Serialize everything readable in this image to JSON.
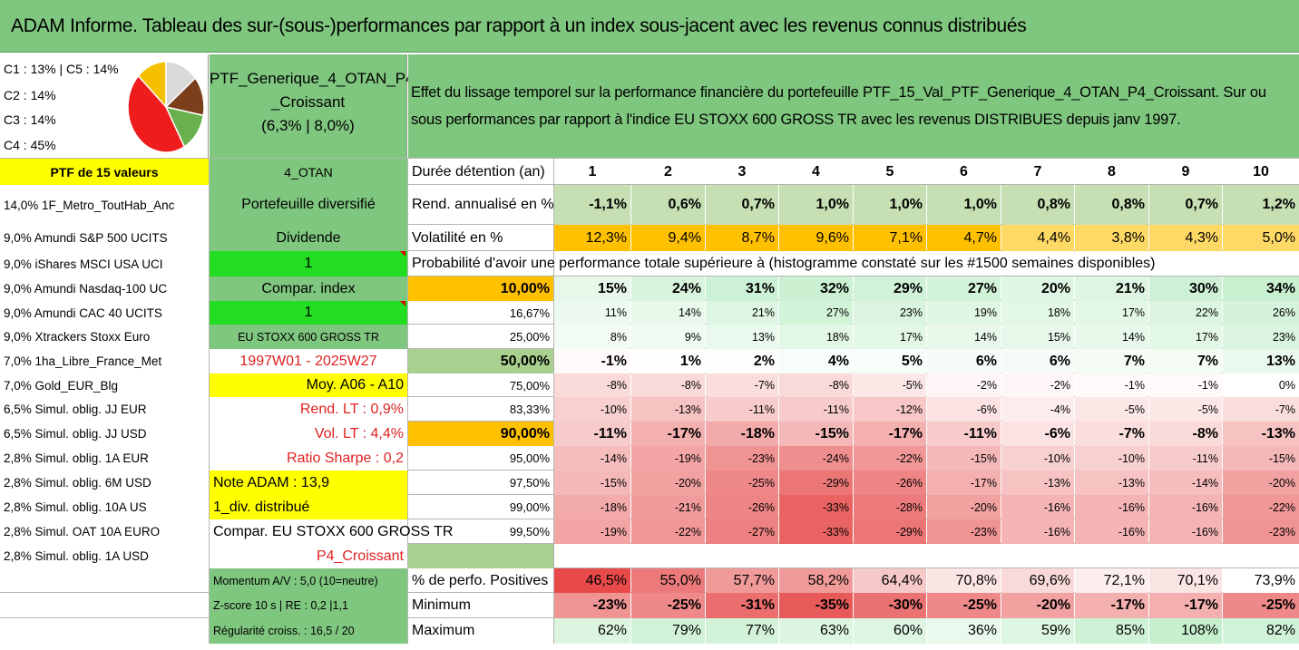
{
  "title": "ADAM Informe. Tableau des sur-(sous-)performances par rapport à un index sous-jacent avec les revenus connus distribués",
  "legend": [
    "C1 : 13% | C5 : 14%",
    "C2 : 14%",
    "C3 : 14%",
    "C4 : 45%"
  ],
  "pie_colors": {
    "c1": "#f5c000",
    "c2": "#7b3f1c",
    "c3": "#6ab04c",
    "c4": "#ee1c1c",
    "c5": "#d9d9d9"
  },
  "ptf": {
    "line1": "PTF_Generique_4_OTAN_P4",
    "line2": "_Croissant",
    "line3": "(6,3% | 8,0%)"
  },
  "desc": {
    "line1": "Effet du lissage temporel sur la performance financière du portefeuille PTF_15_Val_PTF_Generique_4_OTAN_P4_Croissant. Sur ou",
    "line2": "sous performances par rapport à l'indice EU STOXX 600 GROSS TR avec les revenus DISTRIBUES depuis janv 1997."
  },
  "holdings": [
    "PTF de 15 valeurs",
    "14,0% 1F_Metro_ToutHab_Anc",
    "9,0% Amundi S&P 500 UCITS",
    "9,0% iShares MSCI USA UCI",
    "9,0% Amundi Nasdaq-100 UC",
    "9,0% Amundi CAC 40 UCITS",
    "9,0% Xtrackers Stoxx Euro",
    "7,0% 1ha_Libre_France_Met",
    "7,0% Gold_EUR_Blg",
    "6,5% Simul. oblig. JJ EUR",
    "6,5% Simul. oblig. JJ USD",
    "2,8% Simul. oblig. 1A EUR",
    "2,8% Simul. oblig. 6M USD",
    "2,8% Simul. oblig. 10A US",
    "2,8% Simul. OAT 10A EURO",
    "2,8% Simul. oblig. 1A USD"
  ],
  "side": [
    "4_OTAN",
    "Portefeuille diversifié",
    "Dividende",
    "1",
    "Compar. index",
    "1",
    "EU STOXX 600 GROSS TR",
    "1997W01 - 2025W27",
    "Moy. A06 - A10",
    "Rend. LT : 0,9%",
    "Vol. LT : 4,4%",
    "Ratio Sharpe : 0,2",
    "Note ADAM : 13,9",
    "1_div. distribué",
    "Compar. EU STOXX 600 GROSS TR",
    "P4_Croissant",
    "Momentum A/V : 5,0 (10=neutre)",
    "Z-score 10 s | RE : 0,2 |1,1",
    "Régularité croiss. : 16,5 / 20"
  ],
  "label_duree": "Durée détention (an)",
  "years": [
    "1",
    "2",
    "3",
    "4",
    "5",
    "6",
    "7",
    "8",
    "9",
    "10"
  ],
  "label_rend": "Rend. annualisé en %",
  "rend": [
    "-1,1%",
    "0,6%",
    "0,7%",
    "1,0%",
    "1,0%",
    "1,0%",
    "0,8%",
    "0,8%",
    "0,7%",
    "1,2%"
  ],
  "label_vol": "Volatilité en %",
  "vol": [
    "12,3%",
    "9,4%",
    "8,7%",
    "9,6%",
    "7,1%",
    "4,7%",
    "4,4%",
    "3,8%",
    "4,3%",
    "5,0%"
  ],
  "prob_title": "Probabilité d'avoir une performance totale supérieure à (histogramme constaté sur les #1500 semaines disponibles)",
  "quantiles": [
    {
      "q": "10,00%",
      "v": [
        "15%",
        "24%",
        "31%",
        "32%",
        "29%",
        "27%",
        "20%",
        "21%",
        "30%",
        "34%"
      ]
    },
    {
      "q": "16,67%",
      "v": [
        "11%",
        "14%",
        "21%",
        "27%",
        "23%",
        "19%",
        "18%",
        "17%",
        "22%",
        "26%"
      ]
    },
    {
      "q": "25,00%",
      "v": [
        "8%",
        "9%",
        "13%",
        "18%",
        "17%",
        "14%",
        "15%",
        "14%",
        "17%",
        "23%"
      ]
    },
    {
      "q": "50,00%",
      "v": [
        "-1%",
        "1%",
        "2%",
        "4%",
        "5%",
        "6%",
        "6%",
        "7%",
        "7%",
        "13%"
      ]
    },
    {
      "q": "75,00%",
      "v": [
        "-8%",
        "-8%",
        "-7%",
        "-8%",
        "-5%",
        "-2%",
        "-2%",
        "-1%",
        "-1%",
        "0%"
      ]
    },
    {
      "q": "83,33%",
      "v": [
        "-10%",
        "-13%",
        "-11%",
        "-11%",
        "-12%",
        "-6%",
        "-4%",
        "-5%",
        "-5%",
        "-7%"
      ]
    },
    {
      "q": "90,00%",
      "v": [
        "-11%",
        "-17%",
        "-18%",
        "-15%",
        "-17%",
        "-11%",
        "-6%",
        "-7%",
        "-8%",
        "-13%"
      ]
    },
    {
      "q": "95,00%",
      "v": [
        "-14%",
        "-19%",
        "-23%",
        "-24%",
        "-22%",
        "-15%",
        "-10%",
        "-10%",
        "-11%",
        "-15%"
      ]
    },
    {
      "q": "97,50%",
      "v": [
        "-15%",
        "-20%",
        "-25%",
        "-29%",
        "-26%",
        "-17%",
        "-13%",
        "-13%",
        "-14%",
        "-20%"
      ]
    },
    {
      "q": "99,00%",
      "v": [
        "-18%",
        "-21%",
        "-26%",
        "-33%",
        "-28%",
        "-20%",
        "-16%",
        "-16%",
        "-16%",
        "-22%"
      ]
    },
    {
      "q": "99,50%",
      "v": [
        "-19%",
        "-22%",
        "-27%",
        "-33%",
        "-29%",
        "-23%",
        "-16%",
        "-16%",
        "-16%",
        "-23%"
      ]
    }
  ],
  "label_pos": "% de perfo. Positives",
  "pos": [
    "46,5%",
    "55,0%",
    "57,7%",
    "58,2%",
    "64,4%",
    "70,8%",
    "69,6%",
    "72,1%",
    "70,1%",
    "73,9%"
  ],
  "label_min": "Minimum",
  "min": [
    "-23%",
    "-25%",
    "-31%",
    "-35%",
    "-30%",
    "-25%",
    "-20%",
    "-17%",
    "-17%",
    "-25%"
  ],
  "label_max": "Maximum",
  "max": [
    "62%",
    "79%",
    "77%",
    "63%",
    "60%",
    "36%",
    "59%",
    "85%",
    "108%",
    "82%"
  ],
  "colors": {
    "header_green": "#7fc67f",
    "yellow": "#ffff00",
    "orange": "#ffc000",
    "bright_green": "#22dd22",
    "red_text": "#e02020"
  }
}
